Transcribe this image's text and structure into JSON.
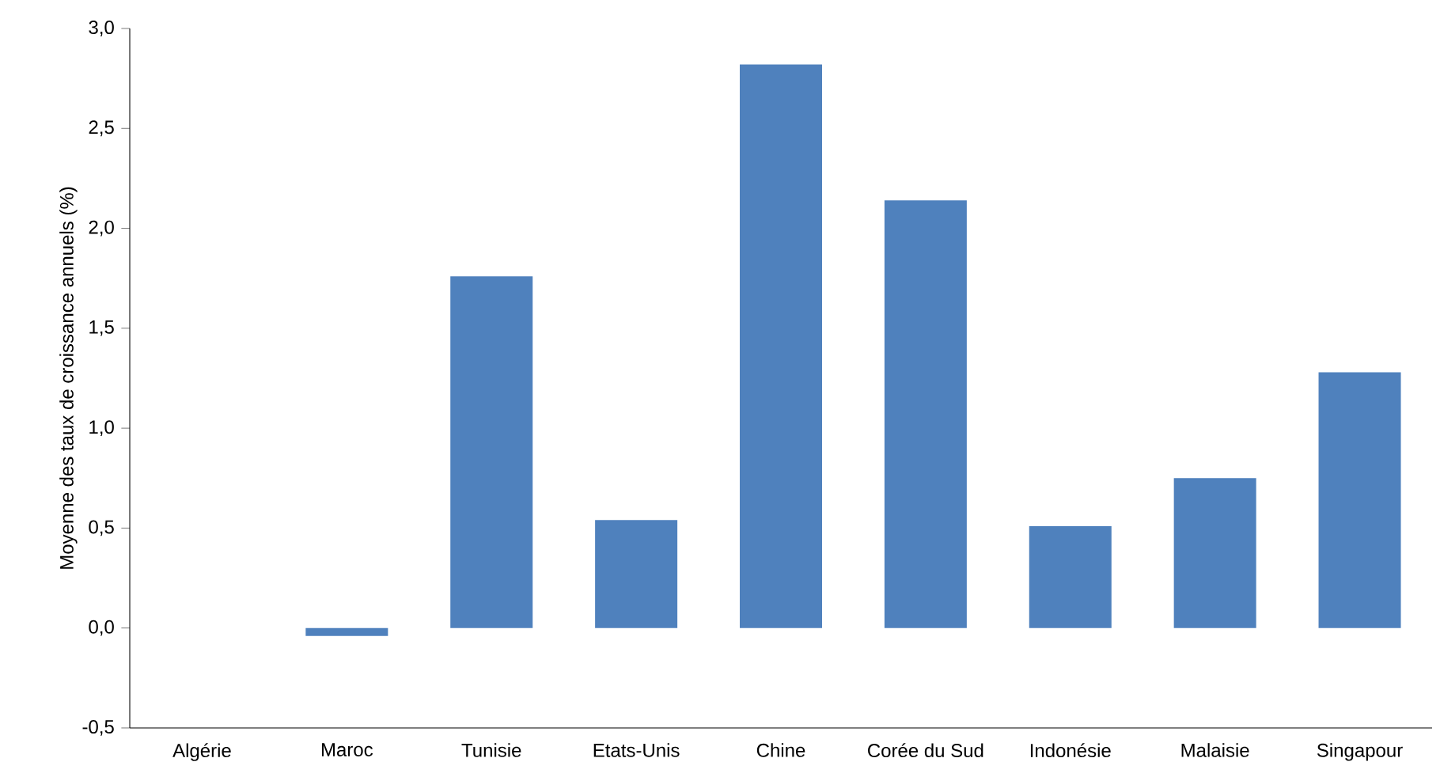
{
  "chart_data": {
    "type": "bar",
    "ylabel": "Moyenne des taux de croissance annuels (%)",
    "categories": [
      "Algérie",
      "Maroc",
      "Tunisie",
      "Etats-Unis",
      "Chine",
      "Corée du Sud",
      "Indonésie",
      "Malaisie",
      "Singapour"
    ],
    "values": [
      0.0,
      -0.04,
      1.76,
      0.54,
      2.82,
      2.14,
      0.51,
      0.75,
      1.28
    ],
    "color": "#4f81bd",
    "ylim": [
      -0.5,
      3.0
    ],
    "yticks": [
      {
        "value": -0.5,
        "label": "-0,5"
      },
      {
        "value": 0,
        "label": "0,0"
      },
      {
        "value": 0.5,
        "label": "0,5"
      },
      {
        "value": 1,
        "label": "1,0"
      },
      {
        "value": 1.5,
        "label": "1,5"
      },
      {
        "value": 2,
        "label": "2,0"
      },
      {
        "value": 2.5,
        "label": "2,5"
      },
      {
        "value": 3,
        "label": "3,0"
      }
    ]
  }
}
